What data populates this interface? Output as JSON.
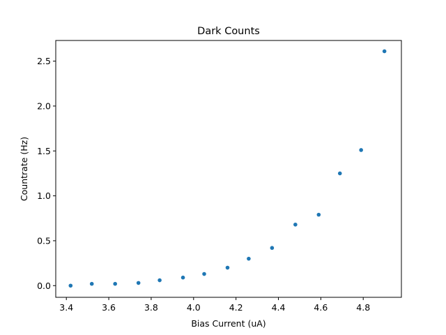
{
  "chart_data": {
    "type": "scatter",
    "title": "Dark Counts",
    "xlabel": "Bias Current (uA)",
    "ylabel": "Countrate (Hz)",
    "xlim": [
      3.35,
      4.98
    ],
    "ylim": [
      -0.13,
      2.73
    ],
    "xticks": [
      {
        "value": 3.4,
        "label": "3.4"
      },
      {
        "value": 3.6,
        "label": "3.6"
      },
      {
        "value": 3.8,
        "label": "3.8"
      },
      {
        "value": 4.0,
        "label": "4.0"
      },
      {
        "value": 4.2,
        "label": "4.2"
      },
      {
        "value": 4.4,
        "label": "4.4"
      },
      {
        "value": 4.6,
        "label": "4.6"
      },
      {
        "value": 4.8,
        "label": "4.8"
      }
    ],
    "yticks": [
      {
        "value": 0.0,
        "label": "0.0"
      },
      {
        "value": 0.5,
        "label": "0.5"
      },
      {
        "value": 1.0,
        "label": "1.0"
      },
      {
        "value": 1.5,
        "label": "1.5"
      },
      {
        "value": 2.0,
        "label": "2.0"
      },
      {
        "value": 2.5,
        "label": "2.5"
      }
    ],
    "grid": false,
    "marker_color": "#1f77b4",
    "series": [
      {
        "x": [
          3.42,
          3.52,
          3.63,
          3.74,
          3.84,
          3.95,
          4.05,
          4.16,
          4.26,
          4.37,
          4.48,
          4.59,
          4.69,
          4.79,
          4.9
        ],
        "y": [
          0.0,
          0.02,
          0.02,
          0.03,
          0.06,
          0.09,
          0.13,
          0.2,
          0.3,
          0.42,
          0.68,
          0.79,
          1.25,
          1.51,
          2.61
        ]
      }
    ]
  }
}
